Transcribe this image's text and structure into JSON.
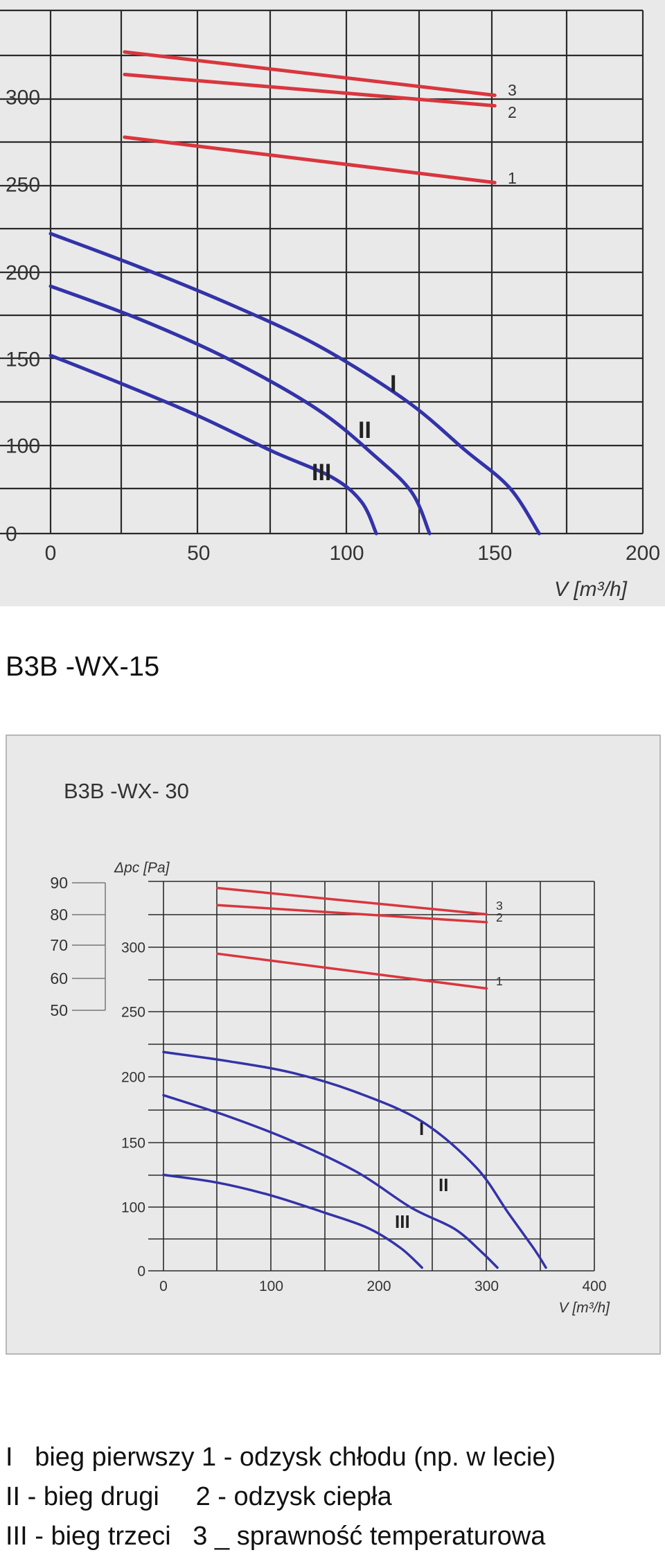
{
  "caption": "B3B -WX-15",
  "legend_lines": [
    "I   bieg pierwszy 1 - odzysk chłodu (np. w lecie)",
    "II - bieg drugi     2 - odzysk ciepła",
    "III - bieg trzeci   3 _ sprawność temperaturowa"
  ],
  "chart_data": [
    {
      "type": "line",
      "title": "",
      "xlabel": "V [m³/h]",
      "ylabel": "",
      "xlim": [
        0,
        200
      ],
      "x_ticks": [
        "0",
        "50",
        "100",
        "150",
        "200"
      ],
      "y_ticks": [
        "0",
        "100",
        "150",
        "200",
        "250",
        "300"
      ],
      "grid": true,
      "curve_labels": [
        "I",
        "II",
        "III",
        "1",
        "2",
        "3"
      ],
      "series": [
        {
          "name": "3",
          "color": "#d9363e",
          "x": [
            25,
            150
          ],
          "y": [
            326,
            301
          ]
        },
        {
          "name": "2",
          "color": "#d9363e",
          "x": [
            25,
            150
          ],
          "y": [
            313,
            295
          ]
        },
        {
          "name": "1",
          "color": "#d9363e",
          "x": [
            25,
            150
          ],
          "y": [
            277,
            251
          ]
        },
        {
          "name": "I",
          "color": "#3333a8",
          "x": [
            0,
            30,
            60,
            90,
            120,
            140,
            155,
            165
          ],
          "y": [
            222,
            203,
            182,
            158,
            126,
            96,
            64,
            25
          ]
        },
        {
          "name": "II",
          "color": "#3333a8",
          "x": [
            0,
            30,
            60,
            90,
            110,
            122,
            128
          ],
          "y": [
            192,
            173,
            150,
            121,
            90,
            60,
            25
          ]
        },
        {
          "name": "III",
          "color": "#3333a8",
          "x": [
            0,
            25,
            50,
            75,
            95,
            105,
            110
          ],
          "y": [
            152,
            135,
            117,
            95,
            73,
            52,
            25
          ]
        }
      ]
    },
    {
      "type": "line",
      "title": "B3B -WX- 30",
      "xlabel": "V [m³/h]",
      "ylabel": "Δpc [Pa]",
      "xlim": [
        0,
        400
      ],
      "x_ticks": [
        "0",
        "100",
        "200",
        "300",
        "400"
      ],
      "y_ticks": [
        "0",
        "100",
        "150",
        "200",
        "250",
        "300"
      ],
      "secondary_axis_ticks": [
        "90",
        "80",
        "70",
        "60",
        "50"
      ],
      "grid": true,
      "curve_labels": [
        "I",
        "II",
        "III",
        "1",
        "2",
        "3"
      ],
      "series": [
        {
          "name": "3",
          "color": "#d9363e",
          "x": [
            50,
            300
          ],
          "y": [
            345,
            325
          ]
        },
        {
          "name": "2",
          "color": "#d9363e",
          "x": [
            50,
            300
          ],
          "y": [
            332,
            319
          ]
        },
        {
          "name": "1",
          "color": "#d9363e",
          "x": [
            50,
            300
          ],
          "y": [
            295,
            268
          ]
        },
        {
          "name": "I",
          "color": "#3333a8",
          "x": [
            0,
            60,
            120,
            180,
            240,
            290,
            320,
            345,
            355
          ],
          "y": [
            219,
            212,
            203,
            188,
            166,
            131,
            91,
            32,
            5
          ]
        },
        {
          "name": "II",
          "color": "#3333a8",
          "x": [
            0,
            60,
            120,
            180,
            230,
            270,
            295,
            310
          ],
          "y": [
            186,
            170,
            151,
            127,
            99,
            66,
            30,
            5
          ]
        },
        {
          "name": "III",
          "color": "#3333a8",
          "x": [
            0,
            50,
            100,
            150,
            190,
            220,
            240
          ],
          "y": [
            125,
            119,
            109,
            91,
            67,
            36,
            5
          ]
        }
      ]
    }
  ]
}
